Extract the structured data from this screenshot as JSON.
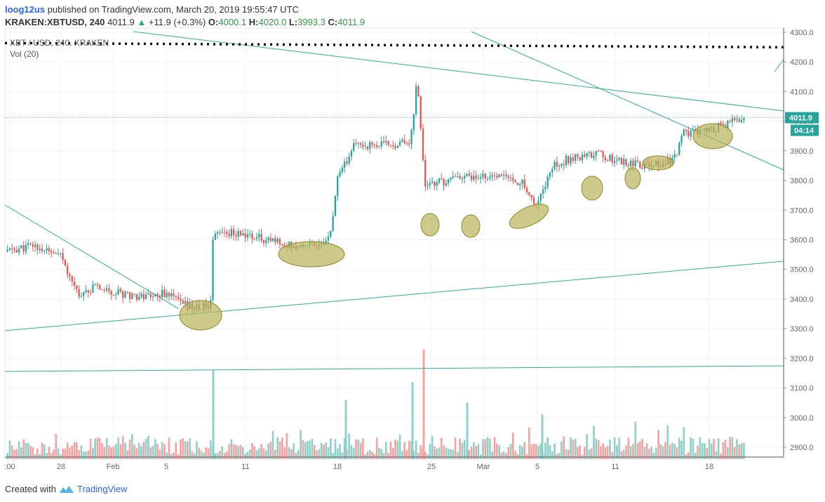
{
  "header": {
    "user": "loog12us",
    "published": "published on TradingView.com, March 20, 2019 19:55:47 UTC",
    "symbol": "KRAKEN:XBTUSD, 240",
    "last": "4011.9",
    "change": "+11.9 (+0.3%)",
    "o_label": "O:",
    "o_val": "4000.1",
    "h_label": "H:",
    "h_val": "4020.0",
    "l_label": "L:",
    "l_val": "3993.3",
    "c_label": "C:",
    "c_val": "4011.9"
  },
  "legend": {
    "title": "XBT / USD, 240, KRAKEN",
    "volume": "Vol (20)"
  },
  "footer": {
    "created_with": "Created with",
    "brand": "TradingView"
  },
  "colors": {
    "up": "#26a69a",
    "down": "#ef5350",
    "vol_up": "#8fd0c8",
    "vol_down": "#f4a3a1",
    "trendline": "#2fae95",
    "highlight_fill": "#b8b45a",
    "highlight_stroke": "#8c8a22"
  },
  "chart_data": {
    "type": "candlestick",
    "price_axis": {
      "ylim": [
        2860,
        4320
      ],
      "ticks": [
        "4300.0",
        "4200.0",
        "4100.0",
        "4000.0",
        "3900.0",
        "3800.0",
        "3700.0",
        "3600.0",
        "3500.0",
        "3400.0",
        "3300.0",
        "3200.0",
        "3100.0",
        "3000.0",
        "2900.0"
      ],
      "last_price_tag": "4011.9",
      "countdown_tag": "04:14"
    },
    "time_axis": {
      "labels": [
        ":00",
        "28",
        "Feb",
        "5",
        "11",
        "18",
        "25",
        "Mar",
        "5",
        "11",
        "18"
      ]
    },
    "price_path": [
      [
        "Jan 26",
        3560
      ],
      [
        "Jan 27",
        3580
      ],
      [
        "Jan 28",
        3540
      ],
      [
        "Jan 29",
        3420
      ],
      [
        "Jan 31",
        3440
      ],
      [
        "Feb 2",
        3420
      ],
      [
        "Feb 4",
        3410
      ],
      [
        "Feb 5",
        3420
      ],
      [
        "Feb 6",
        3380
      ],
      [
        "Feb 7",
        3370
      ],
      [
        "Feb 8",
        3380
      ],
      [
        "Feb 8b",
        3630
      ],
      [
        "Feb 10",
        3620
      ],
      [
        "Feb 12",
        3600
      ],
      [
        "Feb 14",
        3580
      ],
      [
        "Feb 16",
        3590
      ],
      [
        "Feb 17",
        3600
      ],
      [
        "Feb 18",
        3800
      ],
      [
        "Feb 19",
        3920
      ],
      [
        "Feb 21",
        3920
      ],
      [
        "Feb 23",
        3930
      ],
      [
        "Feb 24",
        4150
      ],
      [
        "Feb 24b",
        3780
      ],
      [
        "Feb 26",
        3810
      ],
      [
        "Feb 28",
        3820
      ],
      [
        "Mar 2",
        3810
      ],
      [
        "Mar 4",
        3790
      ],
      [
        "Mar 5",
        3710
      ],
      [
        "Mar 6",
        3850
      ],
      [
        "Mar 8",
        3880
      ],
      [
        "Mar 10",
        3890
      ],
      [
        "Mar 11",
        3870
      ],
      [
        "Mar 12",
        3860
      ],
      [
        "Mar 14",
        3850
      ],
      [
        "Mar 15",
        3870
      ],
      [
        "Mar 16",
        3960
      ],
      [
        "Mar 18",
        3970
      ],
      [
        "Mar 20",
        4011.9
      ]
    ],
    "volume_spikes": [
      [
        "Feb 8",
        3160
      ],
      [
        "Feb 18",
        3060
      ],
      [
        "Feb 24",
        3230
      ],
      [
        "Feb 24b",
        3120
      ],
      [
        "Mar 1",
        3050
      ],
      [
        "Mar 5",
        3010
      ]
    ],
    "annotations": [
      {
        "type": "dotted_resistance",
        "price": 4150
      },
      {
        "type": "trendline",
        "description": "falling resistance from top-left"
      },
      {
        "type": "trendline",
        "description": "rising support"
      },
      {
        "type": "trendline",
        "description": "steep falling line from top"
      },
      {
        "type": "trendline",
        "description": "flat support near 3170"
      },
      {
        "type": "trendline",
        "description": "early falling line"
      },
      {
        "type": "highlight_ellipses",
        "count": 10
      }
    ]
  }
}
